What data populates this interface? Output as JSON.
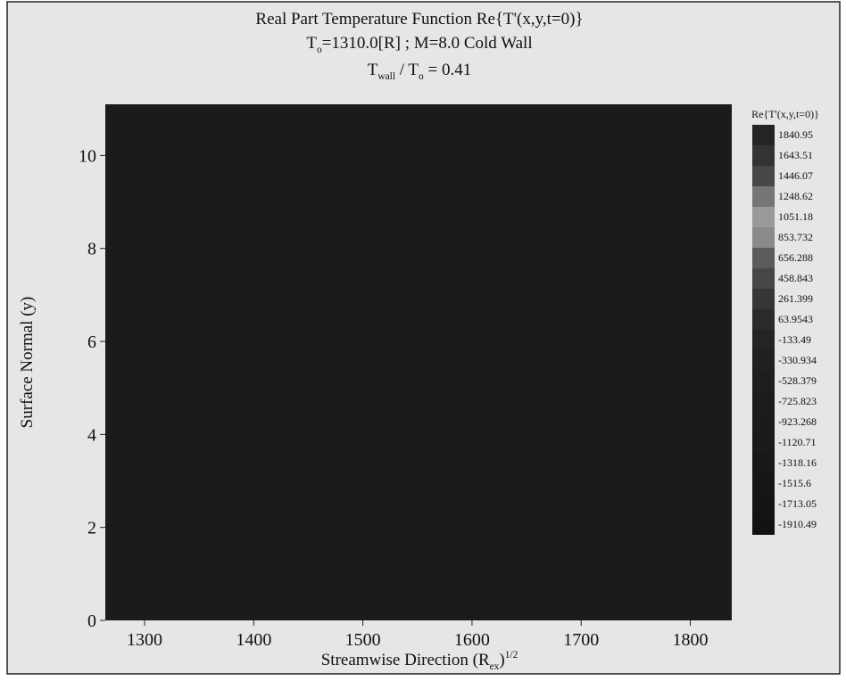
{
  "chart_data": {
    "type": "contour",
    "title": "Real Part Temperature Function Re{T'(x,y,t=0)}",
    "subtitle": [
      "T",
      "o",
      "=1310.0[R] ; M=8.0 Cold Wall"
    ],
    "subtitle2": [
      "T",
      "wall",
      " / T",
      "o",
      " = 0.41"
    ],
    "xlabel": [
      "Streamwise Direction (R",
      "ex",
      ")",
      "1/2"
    ],
    "ylabel": "Surface Normal (y)",
    "xlim": [
      1264,
      1838
    ],
    "xticks": [
      1300,
      1400,
      1500,
      1600,
      1700,
      1800
    ],
    "ylim": [
      0,
      11.1
    ],
    "yticks": [
      0,
      2,
      4,
      6,
      8,
      10
    ],
    "field_color": "#1b1b1b",
    "colorbar": {
      "title": "Re{T'(x,y,t=0)}",
      "levels": [
        1840.95,
        1643.51,
        1446.07,
        1248.62,
        1051.18,
        853.732,
        656.288,
        458.843,
        261.399,
        63.9543,
        -133.49,
        -330.934,
        -528.379,
        -725.823,
        -923.268,
        -1120.71,
        -1318.16,
        -1515.6,
        -1713.05,
        -1910.49
      ],
      "colors": [
        "#242424",
        "#333333",
        "#474747",
        "#767676",
        "#9a9a9a",
        "#8a8a8a",
        "#5c5c5c",
        "#474747",
        "#363636",
        "#2a2a2a",
        "#242424",
        "#202020",
        "#1e1e1e",
        "#1c1c1c",
        "#1b1b1b",
        "#1a1a1a",
        "#181818",
        "#161616",
        "#141414",
        "#121212"
      ]
    }
  }
}
